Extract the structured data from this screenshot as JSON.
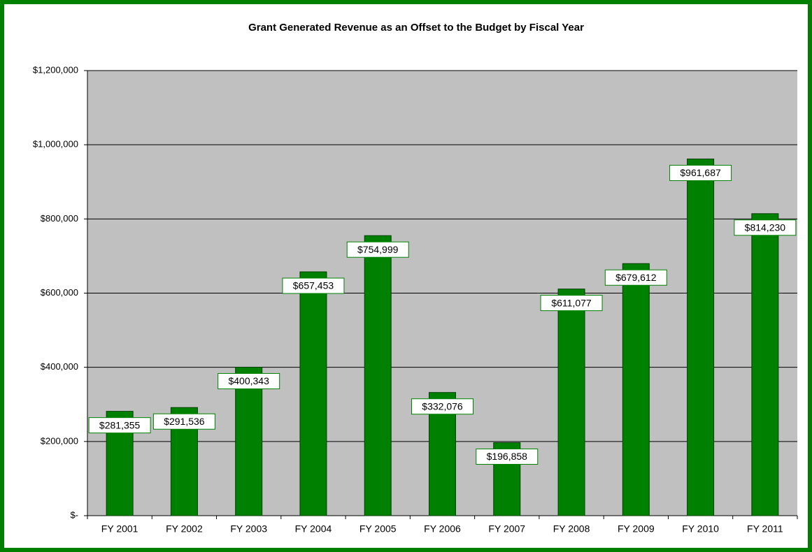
{
  "chart_data": {
    "type": "bar",
    "title": "Grant Generated Revenue as an Offset to the Budget by Fiscal Year",
    "categories": [
      "FY 2001",
      "FY 2002",
      "FY 2003",
      "FY 2004",
      "FY 2005",
      "FY 2006",
      "FY 2007",
      "FY 2008",
      "FY 2009",
      "FY 2010",
      "FY 2011"
    ],
    "values": [
      281355,
      291536,
      400343,
      657453,
      754999,
      332076,
      196858,
      611077,
      679612,
      961687,
      814230
    ],
    "value_labels": [
      "$281,355",
      "$291,536",
      "$400,343",
      "$657,453",
      "$754,999",
      "$332,076",
      "$196,858",
      "$611,077",
      "$679,612",
      "$961,687",
      "$814,230"
    ],
    "color": "#008000",
    "ylim": [
      0,
      1200000
    ],
    "yticks": [
      {
        "value": 0,
        "label": "$-"
      },
      {
        "value": 200000,
        "label": "$200,000"
      },
      {
        "value": 400000,
        "label": "$400,000"
      },
      {
        "value": 600000,
        "label": "$600,000"
      },
      {
        "value": 800000,
        "label": "$800,000"
      },
      {
        "value": 1000000,
        "label": "$1,000,000"
      },
      {
        "value": 1200000,
        "label": "$1,200,000"
      }
    ],
    "grid": true
  }
}
